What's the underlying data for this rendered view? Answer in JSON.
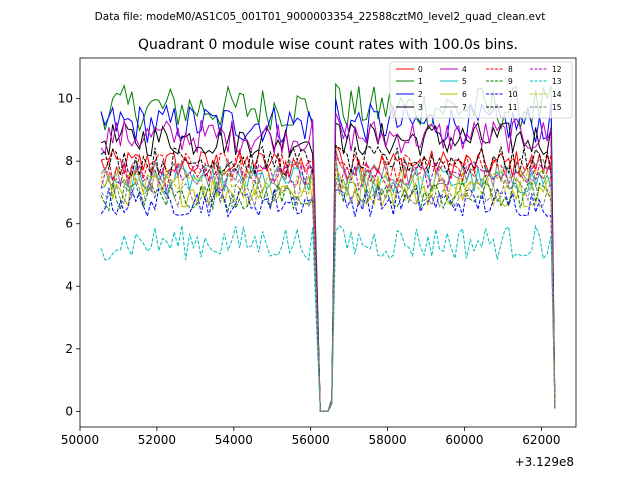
{
  "suptitle": "Data file: modeM0/AS1C05_001T01_9000003354_22588cztM0_level2_quad_clean.evt",
  "chart_data": {
    "type": "line",
    "title": "Quadrant 0 module wise count rates with 100.0s bins.",
    "xlabel": "",
    "ylabel": "",
    "x_offset_label": "+3.129e8",
    "xlim": [
      50000,
      62900
    ],
    "ylim": [
      -0.5,
      11.3
    ],
    "x_ticks": [
      50000,
      52000,
      54000,
      56000,
      58000,
      60000,
      62000
    ],
    "x_tick_labels": [
      "50000",
      "52000",
      "54000",
      "56000",
      "58000",
      "60000",
      "62000"
    ],
    "y_ticks": [
      0,
      2,
      4,
      6,
      8,
      10
    ],
    "y_tick_labels": [
      "0",
      "2",
      "4",
      "6",
      "8",
      "10"
    ],
    "grid": false,
    "legend_location": "top-right",
    "x_segments": [
      {
        "start": 50550,
        "end": 56050
      },
      {
        "start": 56650,
        "end": 62250
      }
    ],
    "gap": {
      "start_x": 56050,
      "end_x": 56650,
      "points_x": [
        56150,
        56250,
        56350,
        56450,
        56550,
        56650
      ],
      "fraction_of_level": [
        0.5,
        0.0,
        0.0,
        0.0,
        0.04,
        1.0
      ]
    },
    "end_drop": {
      "x": [
        62350
      ],
      "fraction_of_level": [
        0.015
      ]
    },
    "series": [
      {
        "name": "0",
        "color": "#ff0000",
        "dash": "solid",
        "level": 7.9,
        "noise": 0.3
      },
      {
        "name": "1",
        "color": "#008000",
        "dash": "solid",
        "level": 9.7,
        "noise": 0.45
      },
      {
        "name": "2",
        "color": "#0000ff",
        "dash": "solid",
        "level": 9.2,
        "noise": 0.4
      },
      {
        "name": "3",
        "color": "#000000",
        "dash": "solid",
        "level": 8.7,
        "noise": 0.35
      },
      {
        "name": "4",
        "color": "#bf00bf",
        "dash": "solid",
        "level": 8.8,
        "noise": 0.35
      },
      {
        "name": "5",
        "color": "#00bfbf",
        "dash": "solid",
        "level": 7.4,
        "noise": 0.3
      },
      {
        "name": "6",
        "color": "#bfbf00",
        "dash": "solid",
        "level": 7.1,
        "noise": 0.35
      },
      {
        "name": "7",
        "color": "#808080",
        "dash": "solid",
        "level": 7.6,
        "noise": 0.3
      },
      {
        "name": "8",
        "color": "#ff0000",
        "dash": "dashed",
        "level": 7.8,
        "noise": 0.3
      },
      {
        "name": "9",
        "color": "#008000",
        "dash": "dashed",
        "level": 6.9,
        "noise": 0.3
      },
      {
        "name": "10",
        "color": "#0000ff",
        "dash": "dashed",
        "level": 6.7,
        "noise": 0.3
      },
      {
        "name": "11",
        "color": "#000000",
        "dash": "dashed",
        "level": 8.0,
        "noise": 0.3
      },
      {
        "name": "12",
        "color": "#bf00bf",
        "dash": "dashed",
        "level": 7.5,
        "noise": 0.3
      },
      {
        "name": "13",
        "color": "#00bfbf",
        "dash": "dashed",
        "level": 5.4,
        "noise": 0.35
      },
      {
        "name": "14",
        "color": "#bfbf00",
        "dash": "dashed",
        "level": 7.3,
        "noise": 0.3
      },
      {
        "name": "15",
        "color": "#808080",
        "dash": "dashed",
        "level": 7.0,
        "noise": 0.3
      }
    ]
  }
}
